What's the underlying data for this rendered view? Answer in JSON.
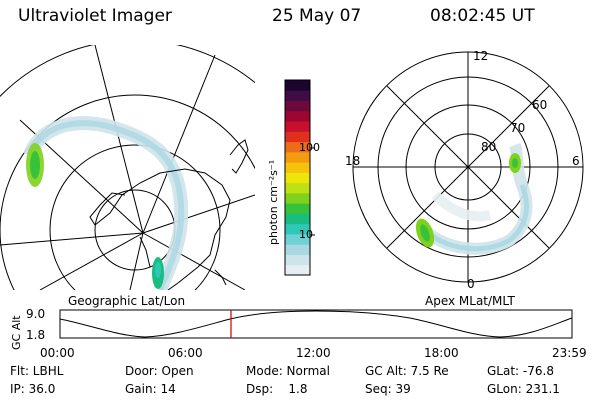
{
  "header": {
    "instrument": "Ultraviolet Imager",
    "date": "25 May 07",
    "time": "08:02:45 UT"
  },
  "colorbar": {
    "unit_label": "photon cm⁻²s⁻¹",
    "ticks": [
      "100",
      "10"
    ],
    "colors": [
      "#e6eef2",
      "#cfe3ea",
      "#a9d8e4",
      "#6fd1d6",
      "#2fc8b7",
      "#19bd7f",
      "#38c13a",
      "#7fd11c",
      "#bfe012",
      "#eee60b",
      "#f5c20c",
      "#f49b10",
      "#ec6c1a",
      "#e0301d",
      "#c8102e",
      "#9b0730",
      "#6d0a3d",
      "#3f0c45",
      "#1b0530"
    ]
  },
  "left_panel": {
    "caption": "Geographic Lat/Lon"
  },
  "right_panel": {
    "caption": "Apex MLat/MLT",
    "labels": {
      "top": "12",
      "bottom": "0",
      "left": "18",
      "right": "6",
      "ring_outer": "60",
      "ring_mid": "70",
      "ring_inner": "80"
    }
  },
  "timeline": {
    "axis_title": "GC Alt",
    "y_top": "9.0",
    "y_bottom": "1.8",
    "x_ticks": [
      "00:00",
      "06:00",
      "12:00",
      "18:00",
      "23:59"
    ],
    "marker_color": "#cc0000"
  },
  "status": {
    "flt": "Flt: LBHL",
    "ip": "IP: 36.0",
    "door": "Door: Open",
    "gain": "Gain: 14",
    "mode": "Mode: Normal",
    "dsp": "Dsp:    1.8",
    "gc_alt": "GC Alt: 7.5 Re",
    "seq": "Seq: 39",
    "glat": "GLat: -76.8",
    "glon": "GLon: 231.1"
  }
}
